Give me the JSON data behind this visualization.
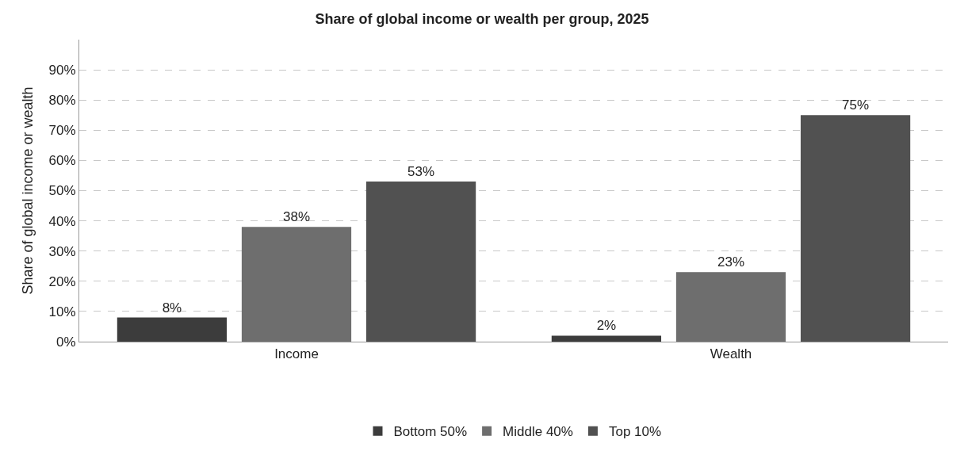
{
  "chart_data": {
    "type": "bar",
    "title": "Share of global income or wealth per group, 2025",
    "ylabel": "Share of global income or wealth",
    "categories": [
      "Income",
      "Wealth"
    ],
    "series": [
      {
        "name": "Bottom 50%",
        "color": "#3c3c3c",
        "values": [
          8,
          2
        ],
        "value_labels": [
          "8%",
          "2%"
        ]
      },
      {
        "name": "Middle 40%",
        "color": "#6e6e6e",
        "values": [
          38,
          23
        ],
        "value_labels": [
          "38%",
          "23%"
        ]
      },
      {
        "name": "Top 10%",
        "color": "#515151",
        "values": [
          53,
          75
        ],
        "value_labels": [
          "53%",
          "75%"
        ]
      }
    ],
    "ylim": [
      0,
      100
    ],
    "yticks": [
      {
        "value": 0,
        "label": "0%"
      },
      {
        "value": 10,
        "label": "10%"
      },
      {
        "value": 20,
        "label": "20%"
      },
      {
        "value": 30,
        "label": "30%"
      },
      {
        "value": 40,
        "label": "40%"
      },
      {
        "value": 50,
        "label": "50%"
      },
      {
        "value": 60,
        "label": "60%"
      },
      {
        "value": 70,
        "label": "70%"
      },
      {
        "value": 80,
        "label": "80%"
      },
      {
        "value": 90,
        "label": "90%"
      }
    ],
    "grid": "y",
    "legend": "bottom"
  }
}
